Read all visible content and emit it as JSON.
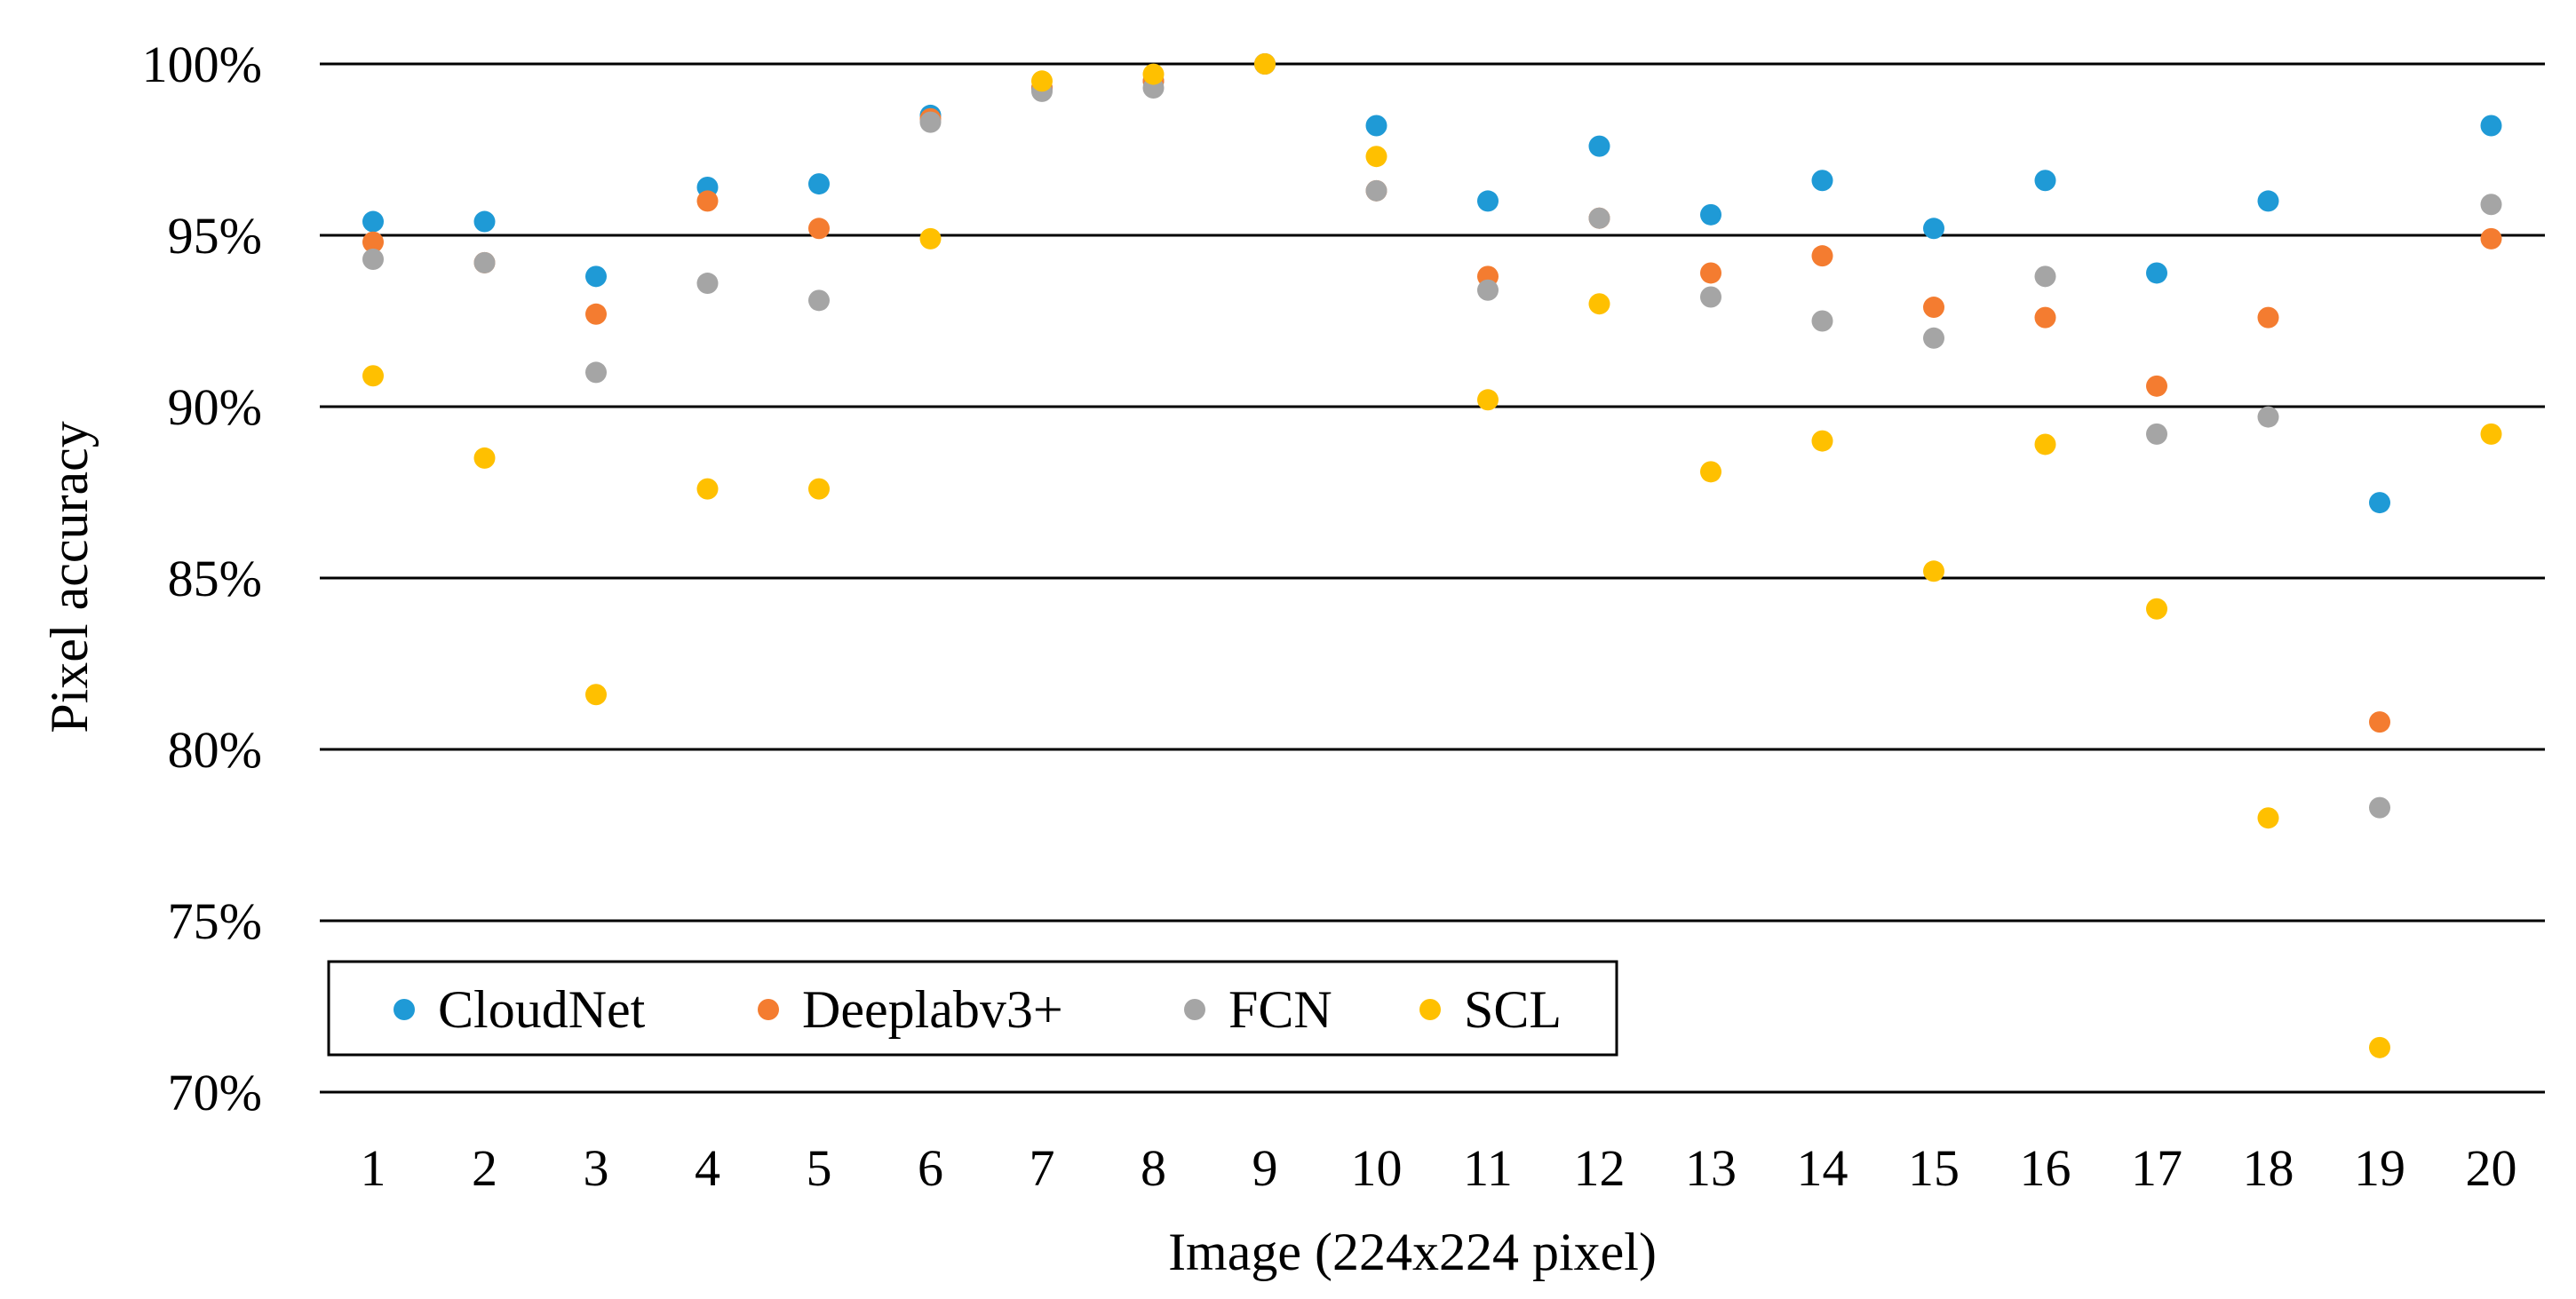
{
  "chart_data": {
    "type": "scatter",
    "title": "",
    "xlabel": "Image (224x224 pixel)",
    "ylabel": "Pixel accuracy",
    "x": [
      1,
      2,
      3,
      4,
      5,
      6,
      7,
      8,
      9,
      10,
      11,
      12,
      13,
      14,
      15,
      16,
      17,
      18,
      19,
      20
    ],
    "x_tick_labels": [
      "1",
      "2",
      "3",
      "4",
      "5",
      "6",
      "7",
      "8",
      "9",
      "10",
      "11",
      "12",
      "13",
      "14",
      "15",
      "16",
      "17",
      "18",
      "19",
      "20"
    ],
    "ylim": [
      70,
      100
    ],
    "y_ticks": [
      70,
      75,
      80,
      85,
      90,
      95,
      100
    ],
    "y_tick_labels": [
      "70%",
      "75%",
      "80%",
      "85%",
      "90%",
      "95%",
      "100%"
    ],
    "grid": true,
    "legend_position": "bottom-left",
    "series": [
      {
        "name": "CloudNet",
        "color": "#1f9ad6",
        "values": [
          95.4,
          95.4,
          93.8,
          96.4,
          96.5,
          98.5,
          99.3,
          99.5,
          100.0,
          98.2,
          96.0,
          97.6,
          95.6,
          96.6,
          95.2,
          96.6,
          93.9,
          96.0,
          87.2,
          98.2
        ]
      },
      {
        "name": "Deeplabv3+",
        "color": "#f47c30",
        "values": [
          94.8,
          94.2,
          92.7,
          96.0,
          95.2,
          98.4,
          99.3,
          99.5,
          100.0,
          96.3,
          93.8,
          95.5,
          93.9,
          94.4,
          92.9,
          92.6,
          90.6,
          92.6,
          80.8,
          94.9
        ]
      },
      {
        "name": "FCN",
        "color": "#a5a5a5",
        "values": [
          94.3,
          94.2,
          91.0,
          93.6,
          93.1,
          98.3,
          99.2,
          99.3,
          100.0,
          96.3,
          93.4,
          95.5,
          93.2,
          92.5,
          92.0,
          93.8,
          89.2,
          89.7,
          78.3,
          95.9
        ]
      },
      {
        "name": "SCL",
        "color": "#ffc000",
        "values": [
          90.9,
          88.5,
          81.6,
          87.6,
          87.6,
          94.9,
          99.5,
          99.7,
          100.0,
          97.3,
          90.2,
          93.0,
          88.1,
          89.0,
          85.2,
          88.9,
          84.1,
          78.0,
          71.3,
          89.2
        ]
      }
    ]
  }
}
